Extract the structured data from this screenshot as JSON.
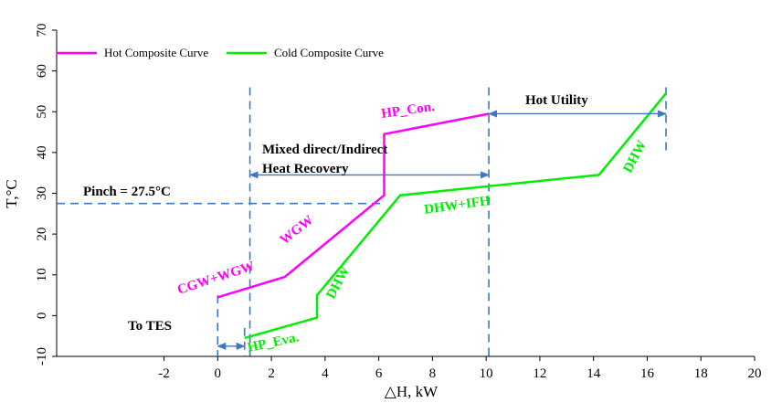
{
  "chart_data": {
    "type": "line",
    "xlabel": "△H, kW",
    "ylabel": "T,°C",
    "xlim": [
      -6,
      20
    ],
    "ylim": [
      -10,
      70
    ],
    "x_ticks": [
      -2,
      0,
      2,
      4,
      6,
      8,
      10,
      12,
      14,
      16,
      18,
      20
    ],
    "y_ticks": [
      -10,
      0,
      10,
      20,
      30,
      40,
      50,
      60,
      70
    ],
    "legend_position": "top-left",
    "series": [
      {
        "name": "Hot Composite Curve",
        "color": "#ff00ff",
        "points": [
          [
            0.0,
            4.5
          ],
          [
            2.5,
            9.5
          ],
          [
            6.2,
            29.5
          ],
          [
            6.2,
            44.5
          ],
          [
            10.1,
            49.5
          ]
        ]
      },
      {
        "name": "Cold Composite Curve",
        "color": "#00ee00",
        "points": [
          [
            1.0,
            -5.5
          ],
          [
            3.7,
            -0.5
          ],
          [
            3.7,
            5.0
          ],
          [
            6.8,
            29.5
          ],
          [
            14.2,
            34.5
          ],
          [
            16.7,
            54.5
          ]
        ]
      }
    ],
    "reference_lines": {
      "pinch_temperature": 27.5,
      "vertical_x": [
        0.0,
        1.0,
        1.2,
        10.1,
        16.7
      ]
    },
    "arrows": [
      {
        "label": "To TES",
        "x_from": 0.0,
        "x_to": 1.0,
        "y": -7.5
      },
      {
        "label": "Mixed direct/Indirect Heat Recovery",
        "x_from": 1.2,
        "x_to": 10.1,
        "y": 34.5
      },
      {
        "label": "Hot Utility",
        "x_from": 10.1,
        "x_to": 16.7,
        "y": 49.5
      }
    ],
    "annotations": {
      "pinch": "Pinch = 27.5°C",
      "to_tes": "To TES",
      "mixed_line1": "Mixed direct/Indirect",
      "mixed_line2": "Heat Recovery",
      "hot_utility": "Hot Utility",
      "hp_con": "HP_Con.",
      "wgw": "WGW",
      "cgw_wgw": "CGW+WGW",
      "dhw_cold_low": "DHW",
      "hp_eva": "HP_Eva.",
      "dhw_ifh": "DHW+IFH",
      "dhw_cold_high": "DHW"
    }
  }
}
